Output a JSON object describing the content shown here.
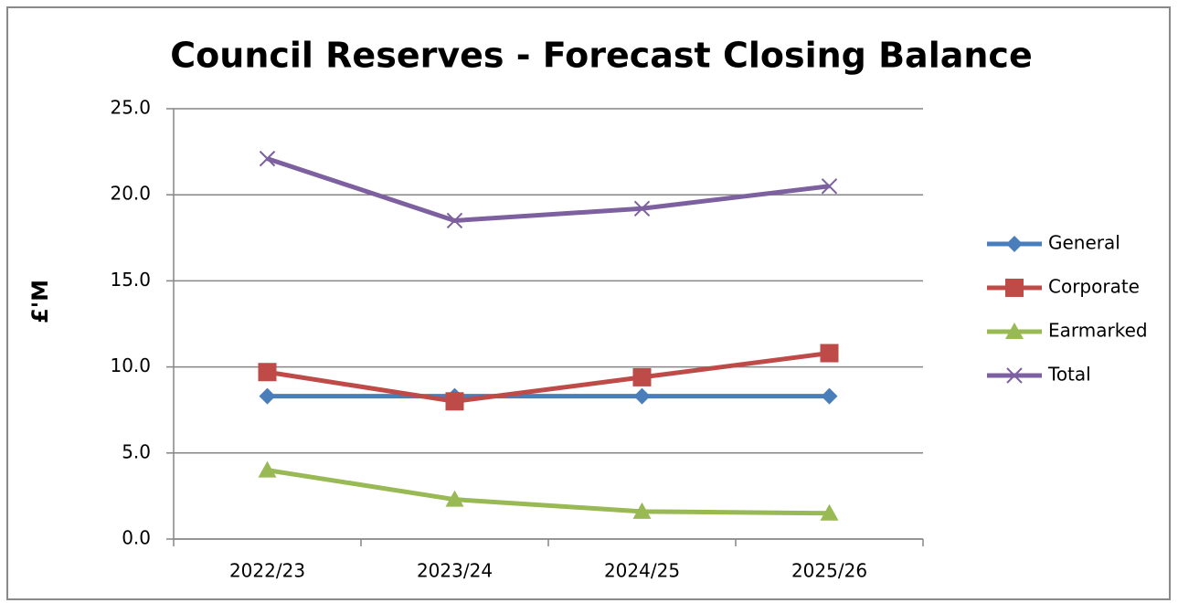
{
  "chart_data": {
    "type": "line",
    "title": "Council Reserves - Forecast Closing Balance",
    "y_label": "£'M",
    "categories": [
      "2022/23",
      "2023/24",
      "2024/25",
      "2025/26"
    ],
    "series": [
      {
        "name": "General",
        "color": "#4a7ebb",
        "marker": "diamond",
        "values": [
          8.3,
          8.3,
          8.3,
          8.3
        ]
      },
      {
        "name": "Corporate",
        "color": "#be4b48",
        "marker": "square",
        "values": [
          9.7,
          8.0,
          9.4,
          10.8
        ]
      },
      {
        "name": "Earmarked",
        "color": "#98b954",
        "marker": "triangle",
        "values": [
          4.0,
          2.3,
          1.6,
          1.5
        ]
      },
      {
        "name": "Total",
        "color": "#7d60a0",
        "marker": "x",
        "values": [
          22.1,
          18.5,
          19.2,
          20.5
        ]
      }
    ],
    "ylim": [
      0,
      25
    ],
    "yticks": [
      {
        "value": 0,
        "label": "0.0"
      },
      {
        "value": 5,
        "label": "5.0"
      },
      {
        "value": 10,
        "label": "10.0"
      },
      {
        "value": 15,
        "label": "15.0"
      },
      {
        "value": 20,
        "label": "20.0"
      },
      {
        "value": 25,
        "label": "25.0"
      }
    ],
    "grid": true,
    "legend": "right"
  }
}
